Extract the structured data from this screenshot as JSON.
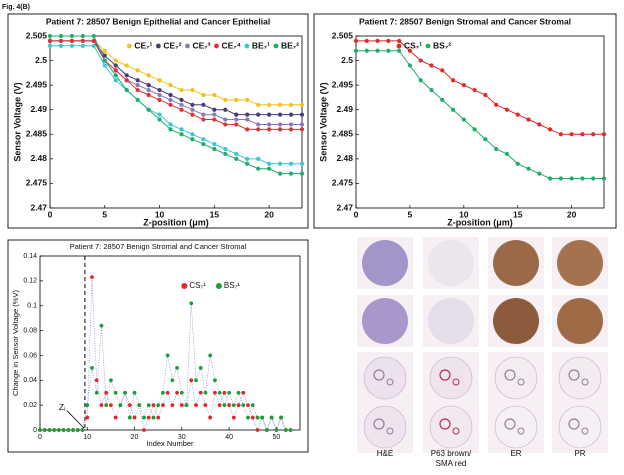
{
  "figure_label": "Fig. 4(B)",
  "chart_data": [
    {
      "type": "line",
      "title": "Patient 7: 28507 Benign Epithelial and Cancer Epithelial",
      "xlabel": "Z-position (μm)",
      "ylabel": "Sensor Voltage (V)",
      "x": [
        0,
        1,
        2,
        3,
        4,
        5,
        6,
        7,
        8,
        9,
        10,
        11,
        12,
        13,
        14,
        15,
        16,
        17,
        18,
        19,
        20,
        21,
        22,
        23
      ],
      "xlim": [
        0,
        23
      ],
      "xticks": [
        0,
        5,
        10,
        15,
        20
      ],
      "ylim": [
        2.47,
        2.505
      ],
      "yticks": [
        2.47,
        2.475,
        2.48,
        2.485,
        2.49,
        2.495,
        2.5,
        2.505
      ],
      "legend_loc": "upper right",
      "series": [
        {
          "name": "CE₇¹",
          "color": "#f2c21b",
          "values": [
            2.504,
            2.504,
            2.504,
            2.504,
            2.504,
            2.502,
            2.5,
            2.499,
            2.498,
            2.497,
            2.496,
            2.495,
            2.494,
            2.494,
            2.493,
            2.493,
            2.492,
            2.492,
            2.492,
            2.491,
            2.491,
            2.491,
            2.491,
            2.491
          ]
        },
        {
          "name": "CE₇²",
          "color": "#4b3a7a",
          "values": [
            2.504,
            2.504,
            2.504,
            2.504,
            2.504,
            2.501,
            2.499,
            2.497,
            2.496,
            2.495,
            2.494,
            2.493,
            2.492,
            2.491,
            2.491,
            2.49,
            2.49,
            2.489,
            2.489,
            2.489,
            2.489,
            2.489,
            2.489,
            2.489
          ]
        },
        {
          "name": "CE₇³",
          "color": "#8a7bb0",
          "values": [
            2.504,
            2.504,
            2.504,
            2.504,
            2.504,
            2.5,
            2.498,
            2.496,
            2.495,
            2.494,
            2.493,
            2.492,
            2.491,
            2.49,
            2.489,
            2.489,
            2.488,
            2.488,
            2.488,
            2.487,
            2.487,
            2.487,
            2.487,
            2.487
          ]
        },
        {
          "name": "CE₇⁴",
          "color": "#e0313a",
          "values": [
            2.504,
            2.504,
            2.504,
            2.504,
            2.504,
            2.5,
            2.498,
            2.496,
            2.494,
            2.493,
            2.492,
            2.491,
            2.49,
            2.489,
            2.488,
            2.488,
            2.487,
            2.487,
            2.486,
            2.486,
            2.486,
            2.486,
            2.486,
            2.486
          ]
        },
        {
          "name": "BE₇¹",
          "color": "#3ac6d4",
          "values": [
            2.503,
            2.503,
            2.503,
            2.503,
            2.503,
            2.499,
            2.496,
            2.494,
            2.492,
            2.49,
            2.489,
            2.487,
            2.486,
            2.485,
            2.484,
            2.483,
            2.482,
            2.481,
            2.48,
            2.48,
            2.479,
            2.479,
            2.479,
            2.479
          ]
        },
        {
          "name": "BE₇²",
          "color": "#1fae6a",
          "values": [
            2.505,
            2.505,
            2.505,
            2.505,
            2.505,
            2.5,
            2.497,
            2.494,
            2.492,
            2.49,
            2.488,
            2.486,
            2.485,
            2.484,
            2.483,
            2.482,
            2.481,
            2.48,
            2.479,
            2.478,
            2.478,
            2.477,
            2.477,
            2.477
          ]
        }
      ]
    },
    {
      "type": "line",
      "title": "Patient 7: 28507 Benign Stromal and Cancer Stromal",
      "xlabel": "Z-position (μm)",
      "ylabel": "Sensor Voltage (V)",
      "x": [
        0,
        1,
        2,
        3,
        4,
        5,
        6,
        7,
        8,
        9,
        10,
        11,
        12,
        13,
        14,
        15,
        16,
        17,
        18,
        19,
        20,
        21,
        22,
        23
      ],
      "xlim": [
        0,
        23
      ],
      "xticks": [
        0,
        5,
        10,
        15,
        20
      ],
      "ylim": [
        2.47,
        2.505
      ],
      "yticks": [
        2.47,
        2.475,
        2.48,
        2.485,
        2.49,
        2.495,
        2.5,
        2.505
      ],
      "legend_loc": "upper left",
      "series": [
        {
          "name": "CS₇¹",
          "color": "#e02a2a",
          "values": [
            2.504,
            2.504,
            2.504,
            2.504,
            2.504,
            2.502,
            2.5,
            2.499,
            2.498,
            2.496,
            2.495,
            2.494,
            2.493,
            2.491,
            2.49,
            2.489,
            2.488,
            2.487,
            2.486,
            2.485,
            2.485,
            2.485,
            2.485,
            2.485
          ]
        },
        {
          "name": "BS₇²",
          "color": "#1fae6a",
          "values": [
            2.502,
            2.502,
            2.502,
            2.502,
            2.502,
            2.499,
            2.496,
            2.494,
            2.492,
            2.49,
            2.488,
            2.486,
            2.484,
            2.482,
            2.481,
            2.479,
            2.478,
            2.477,
            2.476,
            2.476,
            2.476,
            2.476,
            2.476,
            2.476
          ]
        }
      ]
    },
    {
      "type": "scatter",
      "title": "Patient 7: 28507 Benign Stromal and Cancer Stromal",
      "xlabel": "Index Number",
      "ylabel": "Change in Sensor Voltage (%V)",
      "x": [
        0,
        1,
        2,
        3,
        4,
        5,
        6,
        7,
        8,
        9,
        10,
        11,
        12,
        13,
        14,
        15,
        16,
        17,
        18,
        19,
        20,
        21,
        22,
        23,
        24,
        25,
        26,
        27,
        28,
        29,
        30,
        31,
        32,
        33,
        34,
        35,
        36,
        37,
        38,
        39,
        40,
        41,
        42,
        43,
        44,
        45,
        46,
        47,
        48,
        49,
        50,
        51,
        52,
        53
      ],
      "xlim": [
        0,
        55
      ],
      "xticks": [
        0,
        10,
        20,
        30,
        40,
        50
      ],
      "ylim": [
        0,
        0.14
      ],
      "yticks": [
        0,
        0.02,
        0.04,
        0.06,
        0.08,
        0.1,
        0.12,
        0.14
      ],
      "legend_loc": "upper right",
      "linestyle": "dotted",
      "line_color": "#7b8fd6",
      "annotation": "Zᵢ",
      "cutoff_x": 9.5,
      "series": [
        {
          "name": "CS₇¹",
          "color": "#e8242a",
          "values": [
            0,
            0,
            0,
            0,
            0,
            0,
            0,
            0,
            0,
            0,
            0.01,
            0.123,
            0.04,
            0.02,
            0.03,
            0.02,
            0.01,
            0.02,
            0.03,
            0.02,
            0.01,
            0.02,
            0,
            0.01,
            0.02,
            0.01,
            0.02,
            0.03,
            0.02,
            0.03,
            0.02,
            0.02,
            0.04,
            0.02,
            0.03,
            0.02,
            0.01,
            0.03,
            0.02,
            0.03,
            0.02,
            0.01,
            0.02,
            0.03,
            0.02,
            0.01,
            0,
            0.01,
            0,
            0.01,
            0,
            0.01,
            0,
            0
          ]
        },
        {
          "name": "BS₇¹",
          "color": "#1a9e3a",
          "values": [
            0,
            0,
            0,
            0,
            0,
            0,
            0,
            0,
            0,
            0,
            0.02,
            0.05,
            0.03,
            0.084,
            0.02,
            0.04,
            0.03,
            0.02,
            0.03,
            0.01,
            0.03,
            0.02,
            0.01,
            0.02,
            0.01,
            0.02,
            0.03,
            0.06,
            0.04,
            0.05,
            0.03,
            0.02,
            0.102,
            0.04,
            0.05,
            0.03,
            0.06,
            0.04,
            0.03,
            0.02,
            0.03,
            0.02,
            0.03,
            0.02,
            0.01,
            0.02,
            0.01,
            0.01,
            0,
            0.01,
            0,
            0.01,
            0,
            0
          ]
        }
      ]
    }
  ],
  "tissue_panel": {
    "columns": [
      [
        "H&E"
      ],
      [
        "P63 brown/",
        "SMA red"
      ],
      [
        "ER"
      ],
      [
        "PR"
      ]
    ]
  }
}
